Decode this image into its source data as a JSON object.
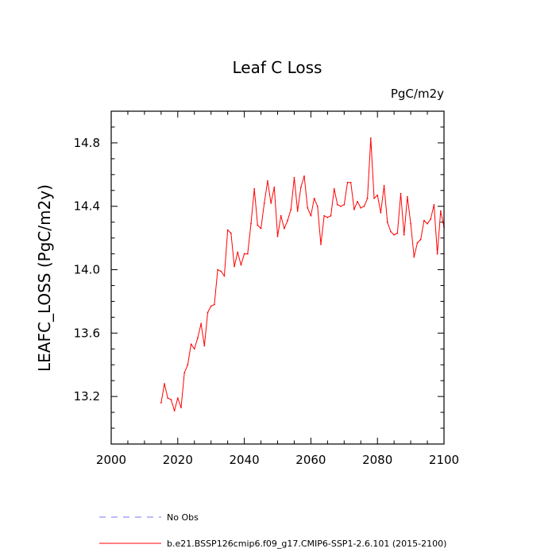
{
  "chart_data": {
    "type": "line",
    "title": "Leaf C Loss",
    "units": "PgC/m2y",
    "xlabel": "",
    "ylabel": "LEAFC_LOSS  (PgC/m2y)",
    "xlim": [
      2000,
      2100
    ],
    "ylim": [
      12.9,
      15.0
    ],
    "xticks": [
      2000,
      2020,
      2040,
      2060,
      2080,
      2100
    ],
    "xtick_labels": [
      "2000",
      "2020",
      "2040",
      "2060",
      "2080",
      "2100"
    ],
    "yticks": [
      13.2,
      13.6,
      14.0,
      14.4,
      14.8
    ],
    "ytick_labels": [
      "13.2",
      "13.6",
      "14.0",
      "14.4",
      "14.8"
    ],
    "series": [
      {
        "name": "b.e21.BSSP126cmip6.f09_g17.CMIP6-SSP1-2.6.101 (2015-2100)",
        "color": "#ff0000",
        "dash": "solid",
        "x": [
          2015,
          2016,
          2017,
          2018,
          2019,
          2020,
          2021,
          2022,
          2023,
          2024,
          2025,
          2026,
          2027,
          2028,
          2029,
          2030,
          2031,
          2032,
          2033,
          2034,
          2035,
          2036,
          2037,
          2038,
          2039,
          2040,
          2041,
          2042,
          2043,
          2044,
          2045,
          2046,
          2047,
          2048,
          2049,
          2050,
          2051,
          2052,
          2053,
          2054,
          2055,
          2056,
          2057,
          2058,
          2059,
          2060,
          2061,
          2062,
          2063,
          2064,
          2065,
          2066,
          2067,
          2068,
          2069,
          2070,
          2071,
          2072,
          2073,
          2074,
          2075,
          2076,
          2077,
          2078,
          2079,
          2080,
          2081,
          2082,
          2083,
          2084,
          2085,
          2086,
          2087,
          2088,
          2089,
          2090,
          2091,
          2092,
          2093,
          2094,
          2095,
          2096,
          2097,
          2098,
          2099,
          2100
        ],
        "values": [
          13.16,
          13.28,
          13.19,
          13.18,
          13.11,
          13.19,
          13.13,
          13.35,
          13.4,
          13.53,
          13.5,
          13.57,
          13.66,
          13.52,
          13.73,
          13.77,
          13.78,
          14.0,
          13.99,
          13.96,
          14.25,
          14.23,
          14.02,
          14.11,
          14.03,
          14.1,
          14.1,
          14.29,
          14.51,
          14.28,
          14.26,
          14.42,
          14.56,
          14.42,
          14.52,
          14.21,
          14.34,
          14.26,
          14.31,
          14.38,
          14.58,
          14.37,
          14.52,
          14.59,
          14.39,
          14.34,
          14.45,
          14.4,
          14.16,
          14.34,
          14.33,
          14.34,
          14.51,
          14.41,
          14.4,
          14.41,
          14.55,
          14.55,
          14.38,
          14.43,
          14.39,
          14.4,
          14.45,
          14.83,
          14.45,
          14.47,
          14.36,
          14.53,
          14.3,
          14.24,
          14.22,
          14.23,
          14.48,
          14.22,
          14.46,
          14.29,
          14.08,
          14.17,
          14.19,
          14.31,
          14.29,
          14.32,
          14.41,
          14.1,
          14.37,
          14.27
        ]
      }
    ],
    "legend": [
      {
        "label": "No Obs",
        "color": "#7777ff",
        "dash": "dashed"
      },
      {
        "label": "b.e21.BSSP126cmip6.f09_g17.CMIP6-SSP1-2.6.101 (2015-2100)",
        "color": "#ff0000",
        "dash": "solid"
      }
    ]
  }
}
